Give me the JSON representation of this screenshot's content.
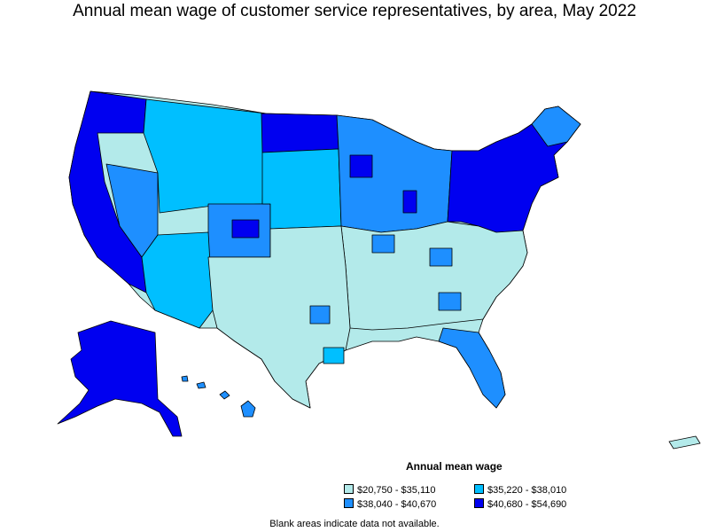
{
  "title": "Annual mean wage of customer service representatives, by area, May 2022",
  "legend": {
    "title": "Annual mean wage",
    "items": [
      {
        "label": "$20,750 - $35,110",
        "color": "#b3eaea"
      },
      {
        "label": "$35,220 - $38,010",
        "color": "#00bfff"
      },
      {
        "label": "$38,040 - $40,670",
        "color": "#1e8fff"
      },
      {
        "label": "$40,680 - $54,690",
        "color": "#0000f0"
      }
    ]
  },
  "footnote": "Blank areas indicate data not available.",
  "colors": {
    "border": "#000000",
    "background": "#ffffff"
  }
}
